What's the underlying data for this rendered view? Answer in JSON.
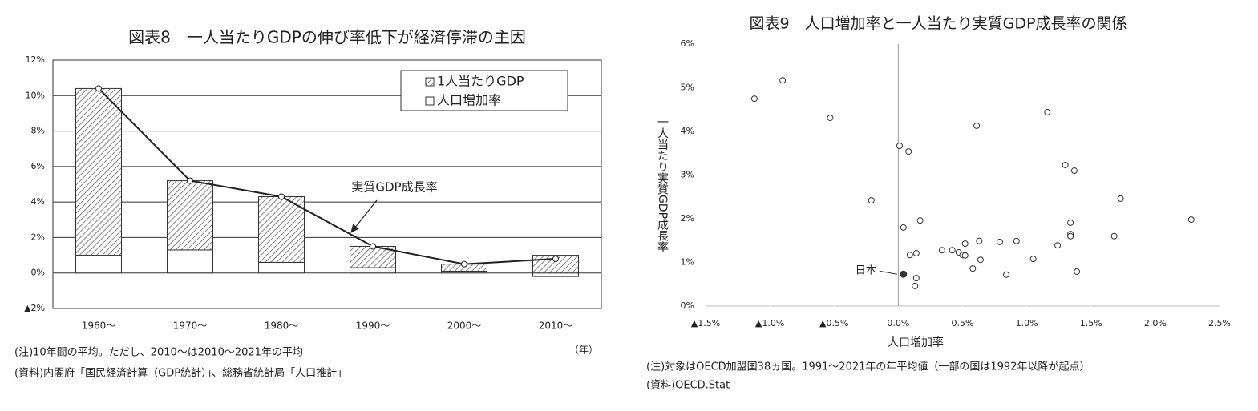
{
  "chart_data": [
    {
      "type": "bar",
      "title": "図表8　一人当たりGDPの伸び率低下が経済停滞の主因",
      "categories": [
        "1960〜",
        "1970〜",
        "1980〜",
        "1990〜",
        "2000〜",
        "2010〜"
      ],
      "series": [
        {
          "name": "1人当たりGDP",
          "color": "#444444",
          "pattern": "hatch",
          "values": [
            9.4,
            3.9,
            3.7,
            1.2,
            0.4,
            1.0
          ]
        },
        {
          "name": "人口増加率",
          "color": "#ffffff",
          "values": [
            1.0,
            1.3,
            0.6,
            0.3,
            0.1,
            -0.2
          ]
        },
        {
          "name": "実質GDP成長率",
          "type": "line",
          "color": "#222222",
          "values": [
            10.4,
            5.2,
            4.3,
            1.5,
            0.5,
            0.8
          ]
        }
      ],
      "ylim": [
        -2,
        12
      ],
      "yticks": [
        {
          "value": -2,
          "label": "▲2%"
        },
        {
          "value": 0,
          "label": "0%"
        },
        {
          "value": 2,
          "label": "2%"
        },
        {
          "value": 4,
          "label": "4%"
        },
        {
          "value": 6,
          "label": "6%"
        },
        {
          "value": 8,
          "label": "8%"
        },
        {
          "value": 10,
          "label": "10%"
        },
        {
          "value": 12,
          "label": "12%"
        }
      ],
      "grid": true,
      "legend": "upper right",
      "x_label": "（年）",
      "notes": [
        "(注)10年間の平均。ただし、2010〜は2010〜2021年の平均",
        "(資料)内閣府「国民経済計算（GDP統計）」、総務省統計局「人口推計」"
      ]
    },
    {
      "type": "scatter",
      "title": "図表9　人口増加率と一人当たり実質GDP成長率の関係",
      "x_label": "人口増加率",
      "y_label": "一人当たり実質GDP成長率",
      "color": "#333333",
      "x": [
        -1.12,
        -0.9,
        -0.53,
        -0.21,
        0.01,
        0.08,
        0.04,
        0.17,
        0.09,
        0.14,
        0.14,
        0.13,
        0.34,
        0.42,
        0.47,
        0.5,
        0.52,
        0.52,
        0.58,
        0.63,
        0.64,
        0.61,
        0.79,
        0.84,
        0.92,
        1.05,
        1.16,
        1.24,
        1.3,
        1.37,
        1.34,
        1.34,
        1.34,
        1.39,
        1.73,
        1.68,
        2.28
      ],
      "values": [
        4.75,
        5.17,
        4.31,
        2.42,
        3.67,
        3.54,
        1.8,
        1.96,
        1.17,
        1.21,
        0.64,
        0.46,
        1.28,
        1.28,
        1.23,
        1.17,
        1.16,
        1.43,
        0.86,
        1.49,
        1.06,
        4.13,
        1.47,
        0.72,
        1.49,
        1.08,
        4.44,
        1.39,
        3.23,
        3.1,
        1.91,
        1.65,
        1.6,
        0.79,
        2.46,
        1.6,
        1.98
      ],
      "highlight": {
        "label": "日本",
        "x": 0.04,
        "y": 0.73
      },
      "xlim": [
        -1.5,
        2.5
      ],
      "xticks": [
        {
          "value": -1.5,
          "label": "▲1.5%"
        },
        {
          "value": -1.0,
          "label": "▲1.0%"
        },
        {
          "value": -0.5,
          "label": "▲0.5%"
        },
        {
          "value": 0,
          "label": "0.0%"
        },
        {
          "value": 0.5,
          "label": "0.5%"
        },
        {
          "value": 1.0,
          "label": "1.0%"
        },
        {
          "value": 1.5,
          "label": "1.5%"
        },
        {
          "value": 2.0,
          "label": "2.0%"
        },
        {
          "value": 2.5,
          "label": "2.5%"
        }
      ],
      "ylim": [
        0,
        6
      ],
      "yticks": [
        {
          "value": 0,
          "label": "0%"
        },
        {
          "value": 1,
          "label": "1%"
        },
        {
          "value": 2,
          "label": "2%"
        },
        {
          "value": 3,
          "label": "3%"
        },
        {
          "value": 4,
          "label": "4%"
        },
        {
          "value": 5,
          "label": "5%"
        },
        {
          "value": 6,
          "label": "6%"
        }
      ],
      "grid": false,
      "notes": [
        "(注)対象はOECD加盟国38ヵ国。1991〜2021年の年平均値（一部の国は1992年以降が起点）",
        "(資料)OECD.Stat"
      ]
    }
  ]
}
